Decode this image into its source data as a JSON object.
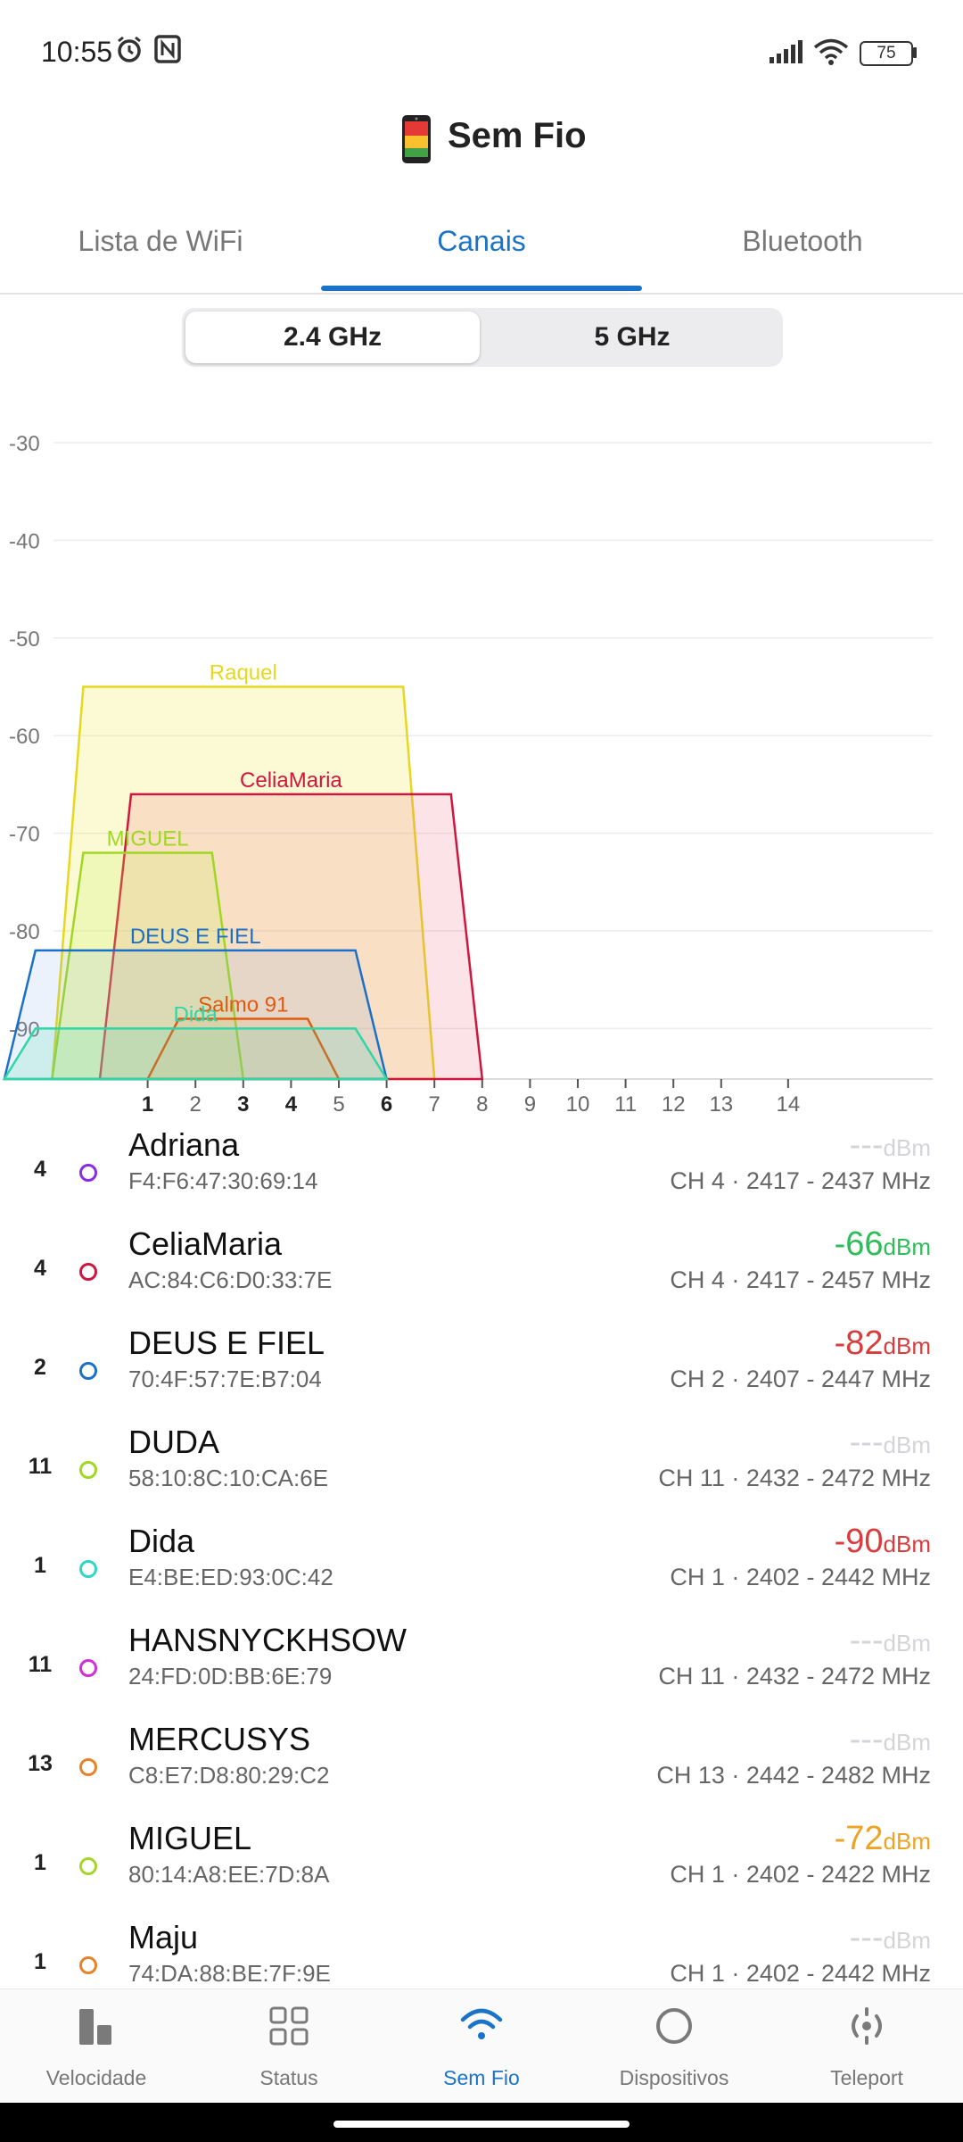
{
  "status_bar": {
    "time": "10:55",
    "battery": "75"
  },
  "header": {
    "title": "Sem Fio"
  },
  "tabs": [
    {
      "label": "Lista de WiFi",
      "active": false
    },
    {
      "label": "Canais",
      "active": true
    },
    {
      "label": "Bluetooth",
      "active": false
    }
  ],
  "band_switch": {
    "options": [
      "2.4 GHz",
      "5 GHz"
    ],
    "selected": "2.4 GHz"
  },
  "chart_data": {
    "type": "area",
    "y_ticks": [
      -30,
      -40,
      -50,
      -60,
      -70,
      -80,
      -90
    ],
    "ylim": [
      -95,
      -28
    ],
    "x_ticks": [
      {
        "label": "1",
        "ch": 1,
        "bold": true
      },
      {
        "label": "2",
        "ch": 2,
        "bold": false
      },
      {
        "label": "3",
        "ch": 3,
        "bold": true
      },
      {
        "label": "4",
        "ch": 4,
        "bold": true
      },
      {
        "label": "5",
        "ch": 5,
        "bold": false
      },
      {
        "label": "6",
        "ch": 6,
        "bold": true
      },
      {
        "label": "7",
        "ch": 7,
        "bold": false
      },
      {
        "label": "8",
        "ch": 8,
        "bold": false
      },
      {
        "label": "9",
        "ch": 9,
        "bold": false
      },
      {
        "label": "10",
        "ch": 10,
        "bold": false
      },
      {
        "label": "11",
        "ch": 11,
        "bold": false
      },
      {
        "label": "12",
        "ch": 12,
        "bold": false
      },
      {
        "label": "13",
        "ch": 13,
        "bold": false
      },
      {
        "label": "14",
        "ch": 14.4,
        "bold": false
      }
    ],
    "grid": true,
    "networks": [
      {
        "name": "Raquel",
        "color": "#e6d81e",
        "fill": "rgba(240,230,60,0.22)",
        "left_ch": -1,
        "right_ch": 7,
        "width_ch": 8,
        "level": -55
      },
      {
        "name": "CeliaMaria",
        "color": "#d0163e",
        "fill": "rgba(240,100,130,0.18)",
        "left_ch": 0,
        "right_ch": 8,
        "width_ch": 8,
        "level": -66
      },
      {
        "name": "MIGUEL",
        "color": "#9fd820",
        "fill": "rgba(200,240,90,0.22)",
        "left_ch": -1,
        "right_ch": 3,
        "width_ch": 4,
        "level": -72
      },
      {
        "name": "DEUS E FIEL",
        "color": "#1a6fc8",
        "fill": "rgba(120,170,230,0.15)",
        "left_ch": -2,
        "right_ch": 6,
        "width_ch": 8,
        "level": -82
      },
      {
        "name": "Salmo 91",
        "color": "#e05a10",
        "fill": "rgba(240,150,80,0.12)",
        "left_ch": 1,
        "right_ch": 5,
        "width_ch": 4,
        "level": -89
      },
      {
        "name": "Dida",
        "color": "#2fd6a6",
        "fill": "rgba(80,220,180,0.18)",
        "left_ch": -2,
        "right_ch": 6,
        "width_ch": 8,
        "level": -90
      }
    ]
  },
  "networks": [
    {
      "channel": "4",
      "name": "Adriana",
      "mac": "F4:F6:47:30:69:14",
      "signal": "---",
      "unit": "dBm",
      "info": "CH 4 · 2417 - 2437 MHz",
      "dot_color": "#8a2be2",
      "signal_color": "#d4d4d8"
    },
    {
      "channel": "4",
      "name": "CeliaMaria",
      "mac": "AC:84:C6:D0:33:7E",
      "signal": "-66",
      "unit": "dBm",
      "info": "CH 4 · 2417 - 2457 MHz",
      "dot_color": "#d0163e",
      "signal_color": "#2ebd59"
    },
    {
      "channel": "2",
      "name": "DEUS E FIEL",
      "mac": "70:4F:57:7E:B7:04",
      "signal": "-82",
      "unit": "dBm",
      "info": "CH 2 · 2407 - 2447 MHz",
      "dot_color": "#1a6fc8",
      "signal_color": "#d83c3c"
    },
    {
      "channel": "11",
      "name": "DUDA",
      "mac": "58:10:8C:10:CA:6E",
      "signal": "---",
      "unit": "dBm",
      "info": "CH 11 · 2432 - 2472 MHz",
      "dot_color": "#9fd820",
      "signal_color": "#d4d4d8"
    },
    {
      "channel": "1",
      "name": "Dida",
      "mac": "E4:BE:ED:93:0C:42",
      "signal": "-90",
      "unit": "dBm",
      "info": "CH 1 · 2402 - 2442 MHz",
      "dot_color": "#2fd6c6",
      "signal_color": "#d83c3c"
    },
    {
      "channel": "11",
      "name": "HANSNYCKHSOW",
      "mac": "24:FD:0D:BB:6E:79",
      "signal": "---",
      "unit": "dBm",
      "info": "CH 11 · 2432 - 2472 MHz",
      "dot_color": "#d02ed8",
      "signal_color": "#d4d4d8"
    },
    {
      "channel": "13",
      "name": "MERCUSYS",
      "mac": "C8:E7:D8:80:29:C2",
      "signal": "---",
      "unit": "dBm",
      "info": "CH 13 · 2442 - 2482 MHz",
      "dot_color": "#e6832a",
      "signal_color": "#d4d4d8"
    },
    {
      "channel": "1",
      "name": "MIGUEL",
      "mac": "80:14:A8:EE:7D:8A",
      "signal": "-72",
      "unit": "dBm",
      "info": "CH 1 · 2402 - 2422 MHz",
      "dot_color": "#a6d62a",
      "signal_color": "#eda325"
    },
    {
      "channel": "1",
      "name": "Maju",
      "mac": "74:DA:88:BE:7F:9E",
      "signal": "---",
      "unit": "dBm",
      "info": "CH 1 · 2402 - 2442 MHz",
      "dot_color": "#e6832a",
      "signal_color": "#d4d4d8"
    }
  ],
  "bottom_nav": [
    {
      "label": "Velocidade",
      "icon": "bar-chart-icon",
      "active": false
    },
    {
      "label": "Status",
      "icon": "grid-icon",
      "active": false
    },
    {
      "label": "Sem Fio",
      "icon": "wifi-icon",
      "active": true
    },
    {
      "label": "Dispositivos",
      "icon": "circle-icon",
      "active": false
    },
    {
      "label": "Teleport",
      "icon": "teleport-icon",
      "active": false
    }
  ]
}
